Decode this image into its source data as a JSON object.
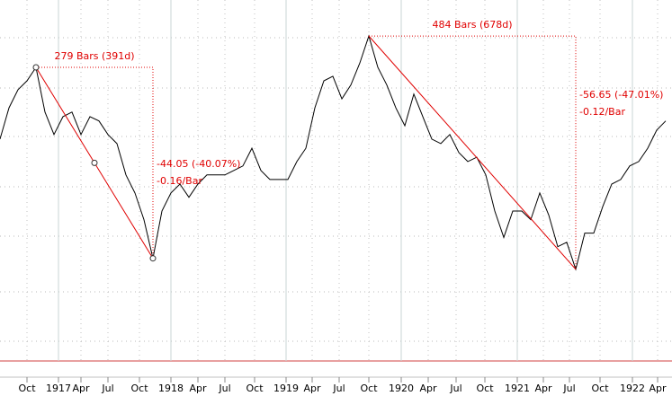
{
  "chart_data": {
    "type": "line",
    "color": "#000000",
    "annotation_color": "#e00000",
    "log_y": true,
    "grid": true,
    "ylim": [
      50.4,
      131.7
    ],
    "xlim": [
      0,
      74.6
    ],
    "values": [
      90.8,
      98.7,
      103.6,
      106.1,
      110.0,
      97.6,
      91.9,
      96.4,
      97.6,
      91.9,
      96.4,
      95.3,
      91.9,
      89.7,
      82.5,
      78.6,
      73.2,
      66.0,
      74.9,
      78.6,
      80.5,
      77.7,
      80.5,
      82.5,
      82.5,
      82.5,
      83.5,
      84.5,
      88.6,
      83.5,
      81.5,
      81.5,
      81.5,
      85.5,
      88.6,
      98.7,
      106.1,
      107.4,
      101.1,
      104.9,
      111.3,
      119.6,
      110.0,
      104.9,
      98.7,
      94.1,
      102.4,
      96.4,
      90.8,
      89.7,
      91.9,
      87.6,
      85.5,
      86.5,
      82.5,
      74.9,
      69.8,
      74.9,
      74.9,
      73.2,
      78.6,
      74.1,
      68.1,
      68.9,
      64.1,
      70.6,
      70.6,
      75.8,
      80.5,
      81.5,
      84.5,
      85.5,
      88.6,
      93.0,
      95.3
    ],
    "xticks": [
      {
        "value": 3.0,
        "label": "Oct"
      },
      {
        "value": 6.5,
        "label": "1917"
      },
      {
        "value": 9.0,
        "label": "Apr"
      },
      {
        "value": 12.0,
        "label": "Jul"
      },
      {
        "value": 15.5,
        "label": "Oct"
      },
      {
        "value": 19.0,
        "label": "1918"
      },
      {
        "value": 22.0,
        "label": "Apr"
      },
      {
        "value": 25.0,
        "label": "Jul"
      },
      {
        "value": 28.3,
        "label": "Oct"
      },
      {
        "value": 31.8,
        "label": "1919"
      },
      {
        "value": 34.7,
        "label": "Apr"
      },
      {
        "value": 37.7,
        "label": "Jul"
      },
      {
        "value": 41.0,
        "label": "Oct"
      },
      {
        "value": 44.6,
        "label": "1920"
      },
      {
        "value": 47.6,
        "label": "Apr"
      },
      {
        "value": 50.7,
        "label": "Jul"
      },
      {
        "value": 53.9,
        "label": "Oct"
      },
      {
        "value": 57.5,
        "label": "1921"
      },
      {
        "value": 60.4,
        "label": "Apr"
      },
      {
        "value": 63.3,
        "label": "Jul"
      },
      {
        "value": 66.7,
        "label": "Oct"
      },
      {
        "value": 70.3,
        "label": "1922"
      },
      {
        "value": 73.1,
        "label": "Apr"
      }
    ],
    "annotations": [
      {
        "start": 4,
        "end": 17,
        "bars": "279 Bars (391d)",
        "change": "-44.05 (-40.07%)",
        "per_bar": "-0.16/Bar",
        "selected": true
      },
      {
        "start": 41,
        "end": 64,
        "bars": "484 Bars (678d)",
        "change": "-56.65 (-47.01%)",
        "per_bar": "-0.12/Bar",
        "selected": false
      }
    ]
  }
}
